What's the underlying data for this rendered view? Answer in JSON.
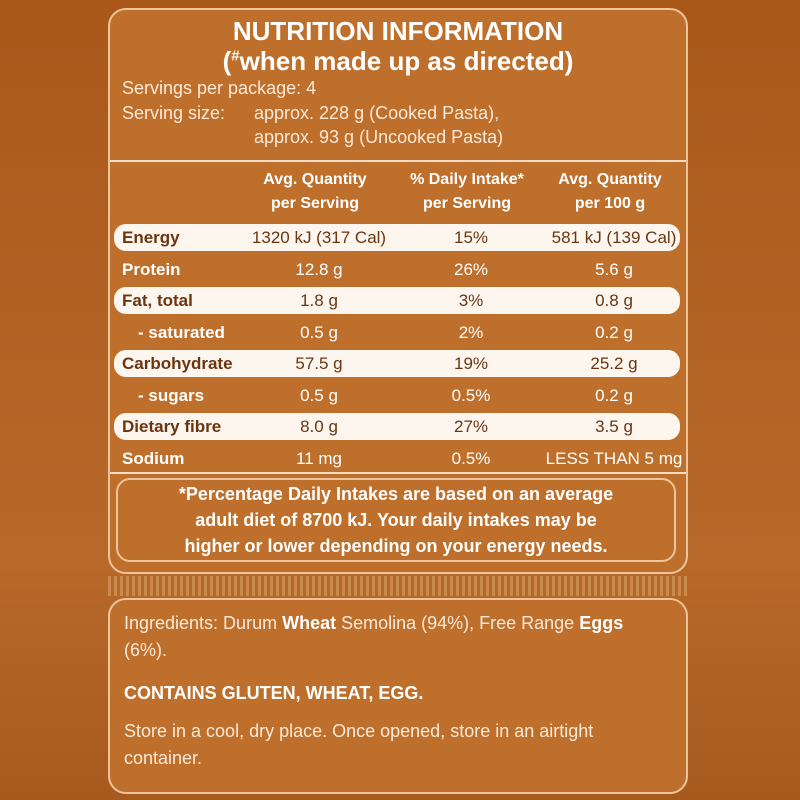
{
  "header": {
    "title": "NUTRITION INFORMATION",
    "subtitle_open": "(",
    "subtitle_mark": "#",
    "subtitle_rest": "when made up as directed)"
  },
  "servings": "Servings per package: 4",
  "serving_size": {
    "label": "Serving size:",
    "lines": [
      "approx. 228 g (Cooked Pasta),",
      "approx. 93 g (Uncooked Pasta)"
    ]
  },
  "table": {
    "columns": [
      [
        "Avg. Quantity",
        "per Serving"
      ],
      [
        "% Daily Intake*",
        "per Serving"
      ],
      [
        "Avg. Quantity",
        "per 100 g"
      ]
    ],
    "rows": [
      [
        "Energy",
        "1320 kJ (317 Cal)",
        "15%",
        "581 kJ (139 Cal)"
      ],
      [
        "Protein",
        "12.8 g",
        "26%",
        "5.6 g"
      ],
      [
        "Fat, total",
        "1.8 g",
        "3%",
        "0.8 g"
      ],
      [
        "- saturated",
        "0.5 g",
        "2%",
        "0.2 g"
      ],
      [
        "Carbohydrate",
        "57.5 g",
        "19%",
        "25.2 g"
      ],
      [
        "- sugars",
        "0.5 g",
        "0.5%",
        "0.2 g"
      ],
      [
        "Dietary fibre",
        "8.0 g",
        "27%",
        "3.5 g"
      ],
      [
        "Sodium",
        "11 mg",
        "0.5%",
        "LESS THAN 5 mg"
      ]
    ]
  },
  "footnote": [
    "*Percentage Daily Intakes are based on an average",
    "adult diet of 8700 kJ. Your daily intakes may be",
    "higher or lower depending on your energy needs."
  ],
  "ingredients": [
    {
      "text": "Ingredients: Durum ",
      "bold": false
    },
    {
      "text": "Wheat",
      "bold": true
    },
    {
      "text": " Semolina (94%), Free Range ",
      "bold": false
    },
    {
      "text": "Eggs",
      "bold": true
    },
    {
      "text": " (6%).",
      "bold": false
    }
  ],
  "allergens": "CONTAINS GLUTEN, WHEAT, EGG.",
  "storage": "Store in a cool, dry place. Once opened, store in an airtight container."
}
